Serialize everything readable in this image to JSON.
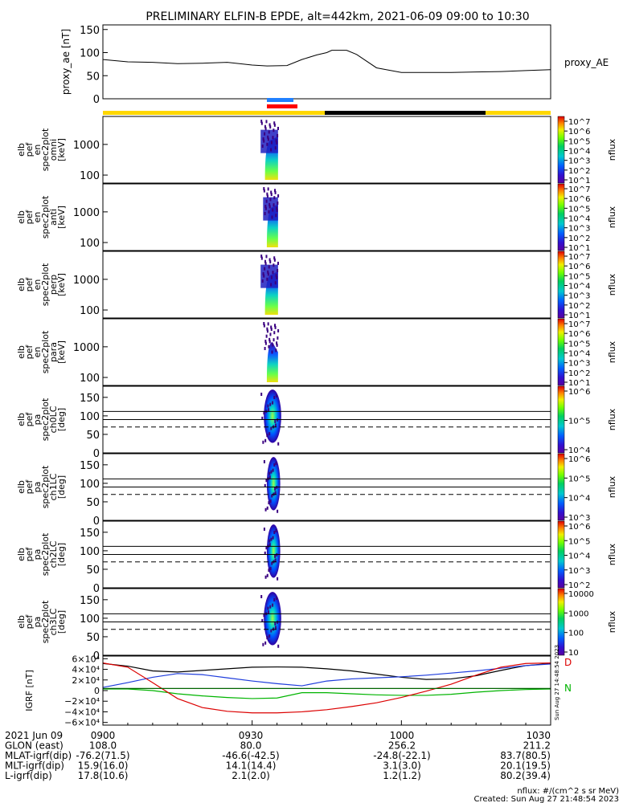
{
  "title": "PRELIMINARY ELFIN-B EPDE, alt=442km, 2021-06-09 09:00 to 10:30",
  "chart_data": [
    {
      "type": "line",
      "ylabel": "proxy_ae [nT]",
      "legend": "proxy_AE",
      "ylim": [
        0,
        160
      ],
      "yticks": [
        "150",
        "100",
        "50",
        "0"
      ],
      "x_minutes": [
        0,
        5,
        10,
        15,
        20,
        25,
        30,
        33,
        37,
        40,
        43,
        45,
        46,
        49,
        51,
        55,
        60,
        65,
        70,
        75,
        80,
        85,
        90
      ],
      "values": [
        85,
        80,
        79,
        76,
        77,
        79,
        73,
        71,
        72,
        85,
        95,
        100,
        105,
        105,
        96,
        67,
        57,
        57,
        57,
        58,
        59,
        61,
        63
      ]
    },
    {
      "type": "heatmap",
      "name": "elb pef en spec2plot omni [keV]",
      "ylabel_lines": [
        "elb",
        "pef",
        "en",
        "spec2plot",
        "omni",
        "[keV]"
      ],
      "yticks": [
        "1000",
        "100"
      ],
      "colorbar_label": "nflux",
      "colorbar_ticks": [
        "10^7",
        "10^6",
        "10^5",
        "10^4",
        "10^3",
        "10^2",
        "10^1"
      ],
      "x_range_minutes": [
        31.7,
        35.2
      ]
    },
    {
      "type": "heatmap",
      "name": "elb pef en spec2plot anti [keV]",
      "ylabel_lines": [
        "elb",
        "pef",
        "en",
        "spec2plot",
        "anti",
        "[keV]"
      ],
      "yticks": [
        "1000",
        "100"
      ],
      "colorbar_label": "nflux",
      "colorbar_ticks": [
        "10^7",
        "10^6",
        "10^5",
        "10^4",
        "10^3",
        "10^2",
        "10^1"
      ],
      "x_range_minutes": [
        32.2,
        35.2
      ]
    },
    {
      "type": "heatmap",
      "name": "elb pef en spec2plot perp [keV]",
      "ylabel_lines": [
        "elb",
        "pef",
        "en",
        "spec2plot",
        "perp",
        "[keV]"
      ],
      "yticks": [
        "1000",
        "100"
      ],
      "colorbar_label": "nflux",
      "colorbar_ticks": [
        "10^7",
        "10^6",
        "10^5",
        "10^4",
        "10^3",
        "10^2",
        "10^1"
      ],
      "x_range_minutes": [
        31.7,
        35.2
      ]
    },
    {
      "type": "heatmap",
      "name": "elb pef en spec2plot para [keV]",
      "ylabel_lines": [
        "elb",
        "pef",
        "en",
        "spec2plot",
        "para",
        "[keV]"
      ],
      "yticks": [
        "1000",
        "100"
      ],
      "colorbar_label": "nflux",
      "colorbar_ticks": [
        "10^7",
        "10^6",
        "10^5",
        "10^4",
        "10^3",
        "10^2",
        "10^1"
      ],
      "x_range_minutes": [
        32.2,
        35.2
      ]
    },
    {
      "type": "heatmap",
      "name": "elb pef pa spec2plot ch0LC [deg]",
      "ylabel_lines": [
        "elb",
        "pef",
        "pa",
        "spec2plot",
        "ch0LC",
        "[deg]"
      ],
      "yticks": [
        "150",
        "100",
        "50",
        "0"
      ],
      "ylim": [
        0,
        180
      ],
      "colorbar_label": "nflux",
      "colorbar_ticks": [
        "10^6",
        "10^5",
        "10^4"
      ],
      "loss_cone_deg": 112,
      "anti_loss_cone_deg": 90,
      "dashed_deg": 70,
      "x_range_minutes": [
        31.7,
        35.2
      ]
    },
    {
      "type": "heatmap",
      "name": "elb pef pa spec2plot ch1LC [deg]",
      "ylabel_lines": [
        "elb",
        "pef",
        "pa",
        "spec2plot",
        "ch1LC",
        "[deg]"
      ],
      "yticks": [
        "150",
        "100",
        "50",
        "0"
      ],
      "ylim": [
        0,
        180
      ],
      "colorbar_label": "nflux",
      "colorbar_ticks": [
        "10^6",
        "10^5",
        "10^4",
        "10^3"
      ],
      "loss_cone_deg": 112,
      "anti_loss_cone_deg": 90,
      "dashed_deg": 70,
      "x_range_minutes": [
        32.3,
        35.0
      ]
    },
    {
      "type": "heatmap",
      "name": "elb pef pa spec2plot ch2LC [deg]",
      "ylabel_lines": [
        "elb",
        "pef",
        "pa",
        "spec2plot",
        "ch2LC",
        "[deg]"
      ],
      "yticks": [
        "150",
        "100",
        "50",
        "0"
      ],
      "ylim": [
        0,
        180
      ],
      "colorbar_label": "nflux",
      "colorbar_ticks": [
        "10^6",
        "10^5",
        "10^4",
        "10^3",
        "10^2"
      ],
      "loss_cone_deg": 112,
      "anti_loss_cone_deg": 90,
      "dashed_deg": 70,
      "x_range_minutes": [
        32.3,
        35.0
      ]
    },
    {
      "type": "heatmap",
      "name": "elb pef pa spec2plot ch3LC [deg]",
      "ylabel_lines": [
        "elb",
        "pef",
        "pa",
        "spec2plot",
        "ch3LC",
        "[deg]"
      ],
      "yticks": [
        "150",
        "100",
        "50",
        "0"
      ],
      "ylim": [
        0,
        180
      ],
      "colorbar_label": "nflux",
      "colorbar_ticks": [
        "10000",
        "1000",
        "100",
        "10"
      ],
      "loss_cone_deg": 112,
      "anti_loss_cone_deg": 90,
      "dashed_deg": 70,
      "x_range_minutes": [
        31.7,
        35.2
      ]
    },
    {
      "type": "line",
      "ylabel": "IGRF [nT]",
      "yticks": [
        "6×10⁴",
        "4×10⁴",
        "2×10⁴",
        "0",
        "−2×10⁴",
        "−4×10⁴",
        "−6×10⁴"
      ],
      "ylim": [
        -65000,
        65000
      ],
      "x_minutes": [
        0,
        5,
        10,
        15,
        20,
        25,
        30,
        35,
        40,
        45,
        50,
        55,
        60,
        65,
        70,
        75,
        80,
        85,
        90
      ],
      "series": [
        {
          "name": "black",
          "color": "#000000",
          "values": [
            51000,
            46000,
            37000,
            35000,
            38000,
            41000,
            44000,
            44500,
            44000,
            41000,
            37000,
            31000,
            25000,
            21000,
            22000,
            28000,
            38000,
            47000,
            51000
          ]
        },
        {
          "name": "blue",
          "color": "#1e3cdc",
          "values": [
            6000,
            15000,
            25000,
            32000,
            30000,
            24000,
            18000,
            13000,
            9000,
            18000,
            22000,
            24000,
            26000,
            29000,
            33000,
            37000,
            42000,
            47000,
            50000
          ]
        },
        {
          "name": "green",
          "color": "#00b400",
          "values": [
            3000,
            3000,
            0,
            -6000,
            -10000,
            -13000,
            -15000,
            -14000,
            -4000,
            -4000,
            -6000,
            -8000,
            -9000,
            -9000,
            -7000,
            -3000,
            0,
            2000,
            3000
          ]
        },
        {
          "name": "red",
          "color": "#dc0000",
          "values": [
            52000,
            44000,
            15000,
            -15000,
            -32000,
            -39000,
            -42000,
            -42000,
            -40000,
            -36000,
            -30000,
            -23000,
            -13000,
            -1000,
            12000,
            29000,
            44000,
            51000,
            52000
          ]
        },
        {
          "name": "darkgreen",
          "color": "#006400",
          "values": [
            4000,
            4000,
            4000,
            4000,
            4000,
            4000,
            4000,
            4000,
            4000,
            4000,
            4000,
            4000,
            4000,
            4000,
            4000,
            4000,
            4000,
            4000,
            4000
          ]
        }
      ],
      "side_labels": [
        "D",
        "N"
      ],
      "stamp": "Sun Aug 27 14:48:54 2023"
    }
  ],
  "footer": {
    "rows": [
      {
        "label": "2021 Jun 09",
        "values": [
          "0900",
          "0930",
          "1000",
          "1030"
        ]
      },
      {
        "label": "GLON (east)",
        "values": [
          "108.0",
          "80.0",
          "256.2",
          "211.2"
        ]
      },
      {
        "label": "MLAT-igrf(dip)",
        "values": [
          "-76.2(71.5)",
          "-46.6(-42.5)",
          "-24.8(-22.1)",
          "83.7(80.5)"
        ]
      },
      {
        "label": "MLT-igrf(dip)",
        "values": [
          "15.9(16.0)",
          "14.1(14.4)",
          "3.1(3.0)",
          "20.1(19.5)"
        ]
      },
      {
        "label": "L-igrf(dip)",
        "values": [
          "17.8(10.6)",
          "2.1(2.0)",
          "1.2(1.2)",
          "80.2(39.4)"
        ]
      }
    ],
    "units_note": "nflux: #/(cm^2 s sr MeV)",
    "created": "Created: Sun Aug 27 21:48:54 2023"
  }
}
